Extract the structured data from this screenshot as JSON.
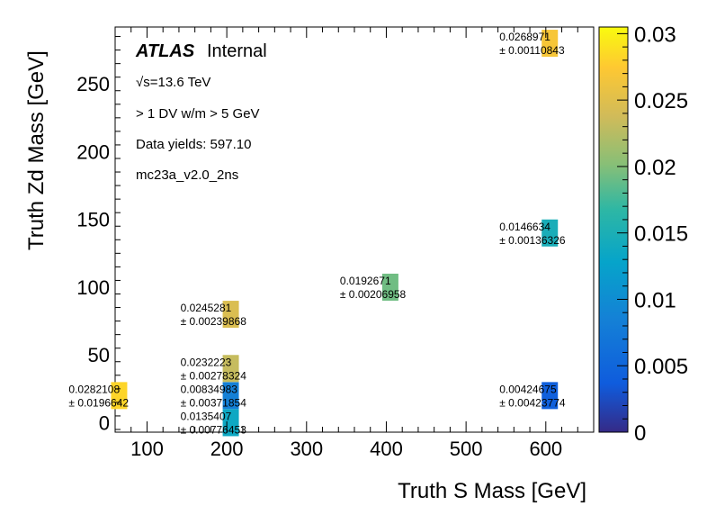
{
  "chart_data": {
    "type": "heatmap",
    "xlabel": "Truth S Mass [GeV]",
    "ylabel": "Truth Zd Mass [GeV]",
    "xlim": [
      60,
      660
    ],
    "ylim": [
      -7,
      292
    ],
    "xticks": [
      "100",
      "200",
      "300",
      "400",
      "500",
      "600"
    ],
    "yticks": [
      "0",
      "50",
      "100",
      "150",
      "200",
      "250"
    ],
    "z_range": [
      0,
      0.0305
    ],
    "colorbar_ticks": [
      "0",
      "0.005",
      "0.01",
      "0.015",
      "0.02",
      "0.025",
      "0.03"
    ],
    "annotations": {
      "atlas": "ATLAS",
      "internal": "Internal",
      "energy": "√s=13.6 TeV",
      "selection": "> 1 DV w/m > 5 GeV",
      "yields": "Data yields: 597.10",
      "sample": "mc23a_v2.0_2ns"
    },
    "cells": [
      {
        "x": 65,
        "y": 20,
        "value": 0.0282108,
        "label": "0.0282108",
        "error": "± 0.0196642"
      },
      {
        "x": 205,
        "y": 0,
        "value": 0.0135407,
        "label": "0.0135407",
        "error": "± 0.00776453"
      },
      {
        "x": 205,
        "y": 20,
        "value": 0.00834983,
        "label": "0.00834983",
        "error": "± 0.00371854"
      },
      {
        "x": 205,
        "y": 40,
        "value": 0.0232223,
        "label": "0.0232223",
        "error": "± 0.00278324"
      },
      {
        "x": 205,
        "y": 80,
        "value": 0.0245281,
        "label": "0.0245281",
        "error": "± 0.00239868"
      },
      {
        "x": 405,
        "y": 100,
        "value": 0.0192671,
        "label": "0.0192671",
        "error": "± 0.00206958"
      },
      {
        "x": 605,
        "y": 20,
        "value": 0.00424675,
        "label": "0.00424675",
        "error": "± 0.00423774"
      },
      {
        "x": 605,
        "y": 140,
        "value": 0.0146634,
        "label": "0.0146634",
        "error": "± 0.00136326"
      },
      {
        "x": 605,
        "y": 280,
        "value": 0.0268971,
        "label": "0.0268971",
        "error": "± 0.00110843"
      }
    ]
  }
}
